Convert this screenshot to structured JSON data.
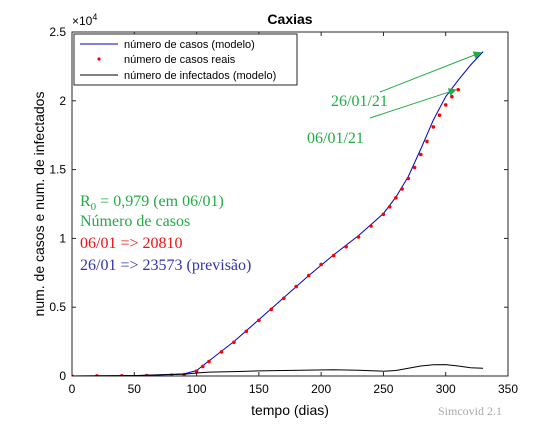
{
  "chart_data": {
    "type": "line",
    "title": "Caxias",
    "xlabel": "tempo (dias)",
    "ylabel": "num. de casos e num. de infectados",
    "xlim": [
      0,
      350
    ],
    "ylim": [
      0,
      25000
    ],
    "y_exponent_label": "×10",
    "y_exponent_power": "4",
    "x_ticks": [
      0,
      50,
      100,
      150,
      200,
      250,
      300,
      350
    ],
    "y_ticks": [
      {
        "value": 0,
        "label": "0"
      },
      {
        "value": 5000,
        "label": "0.5"
      },
      {
        "value": 10000,
        "label": "1"
      },
      {
        "value": 15000,
        "label": "1.5"
      },
      {
        "value": 20000,
        "label": "2"
      },
      {
        "value": 25000,
        "label": "2.5"
      }
    ],
    "grid": false,
    "legend_position": "top-left",
    "series": [
      {
        "name": "número de casos (modelo)",
        "color": "#0000cc",
        "style": "line",
        "x": [
          0,
          50,
          90,
          100,
          110,
          130,
          150,
          170,
          190,
          210,
          230,
          250,
          260,
          270,
          280,
          290,
          300,
          310,
          320,
          330
        ],
        "y": [
          0,
          30,
          150,
          400,
          1100,
          2500,
          4100,
          5700,
          7300,
          8800,
          10200,
          11800,
          13000,
          14500,
          16500,
          18600,
          20300,
          21500,
          22600,
          23573
        ]
      },
      {
        "name": "número de casos reais",
        "color": "#ff0000",
        "style": "markers",
        "x": [
          0,
          20,
          40,
          60,
          80,
          90,
          100,
          105,
          110,
          120,
          130,
          140,
          150,
          160,
          170,
          180,
          190,
          200,
          210,
          220,
          230,
          240,
          250,
          255,
          260,
          265,
          270,
          275,
          280,
          285,
          290,
          295,
          300,
          305,
          310
        ],
        "y": [
          0,
          5,
          15,
          30,
          60,
          100,
          350,
          700,
          1050,
          1750,
          2450,
          3250,
          4050,
          4850,
          5650,
          6500,
          7300,
          8100,
          8750,
          9400,
          10100,
          10900,
          11750,
          12300,
          12950,
          13600,
          14350,
          15150,
          16100,
          17050,
          18100,
          18950,
          19700,
          20300,
          20810
        ]
      },
      {
        "name": "número de infectados (modelo)",
        "color": "#000000",
        "style": "line",
        "x": [
          0,
          50,
          90,
          100,
          110,
          130,
          150,
          170,
          190,
          210,
          230,
          250,
          260,
          270,
          280,
          290,
          300,
          310,
          320,
          330
        ],
        "y": [
          0,
          30,
          120,
          220,
          280,
          320,
          370,
          400,
          430,
          450,
          420,
          350,
          400,
          560,
          730,
          820,
          830,
          730,
          600,
          560
        ]
      }
    ],
    "annotations": {
      "date_labels": [
        {
          "text": "26/01/21",
          "color": "#22aa44",
          "arrow_to": {
            "x": 328,
            "y": 23500
          }
        },
        {
          "text": "06/01/21",
          "color": "#22aa44",
          "arrow_to": {
            "x": 308,
            "y": 20800
          }
        }
      ],
      "info_lines": [
        {
          "text": "R",
          "sub": "0",
          "rest": " = 0,979 (em 06/01)",
          "color": "#22aa44"
        },
        {
          "text": "Número de casos",
          "color": "#22aa44"
        },
        {
          "text": "06/01 => 20810",
          "color": "#ee1111"
        },
        {
          "text": "26/01 => 23573 (previsão)",
          "color": "#3333aa"
        }
      ]
    }
  },
  "watermark": "Simcovid 2.1"
}
